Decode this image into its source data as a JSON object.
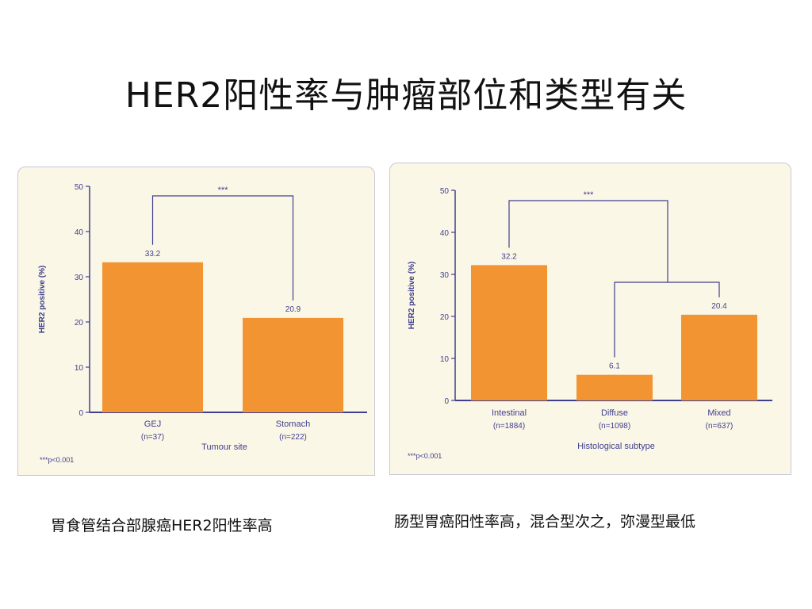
{
  "slide": {
    "title": "HER2阳性率与肿瘤部位和类型有关",
    "captions": [
      "胃食管结合部腺癌HER2阳性率高",
      "肠型胃癌阳性率高，混合型次之，弥漫型最低"
    ]
  },
  "colors": {
    "bar": "#f39433",
    "axis": "#3f3f8f",
    "text": "#3f3f8f",
    "panel_bg": "#fbf7e6"
  },
  "chart_data": [
    {
      "type": "bar",
      "ylabel": "HER2 positive (%)",
      "xlabel": "Tumour site",
      "ylim": [
        0,
        50
      ],
      "yticks": [
        0,
        10,
        20,
        30,
        40,
        50
      ],
      "categories": [
        "GEJ",
        "Stomach"
      ],
      "category_ns": [
        "(n=37)",
        "(n=222)"
      ],
      "values": [
        33.2,
        20.9
      ],
      "value_labels": [
        "33.2",
        "20.9"
      ],
      "significance": "***",
      "footnote": "***p<0.001",
      "grid": false
    },
    {
      "type": "bar",
      "ylabel": "HER2 positive (%)",
      "xlabel": "Histological subtype",
      "ylim": [
        0,
        50
      ],
      "yticks": [
        0,
        10,
        20,
        30,
        40,
        50
      ],
      "categories": [
        "Intestinal",
        "Diffuse",
        "Mixed"
      ],
      "category_ns": [
        "(n=1884)",
        "(n=1098)",
        "(n=637)"
      ],
      "values": [
        32.2,
        6.1,
        20.4
      ],
      "value_labels": [
        "32.2",
        "6.1",
        "20.4"
      ],
      "significance": "***",
      "footnote": "***p<0.001",
      "grid": false
    }
  ]
}
